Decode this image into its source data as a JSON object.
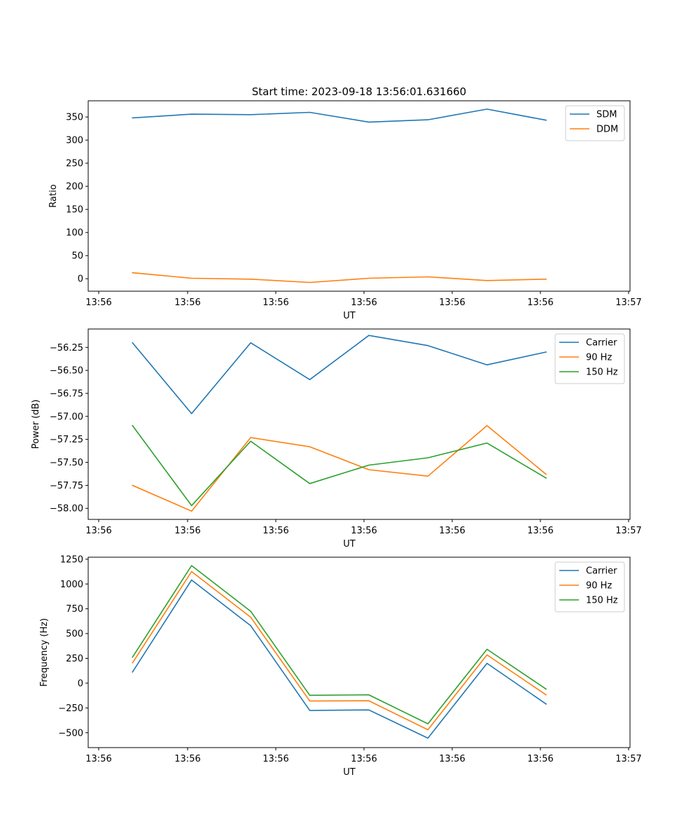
{
  "chart_data": [
    {
      "type": "line",
      "title": "Start time: 2023-09-18 13:56:01.631660",
      "xlabel": "UT",
      "ylabel": "Ratio",
      "x_tick_labels": [
        "13:56",
        "13:56",
        "13:56",
        "13:56",
        "13:56",
        "13:56",
        "13:57"
      ],
      "x": [
        1,
        2,
        3,
        4,
        5,
        6,
        7,
        8
      ],
      "xlim": [
        0.25,
        9.42
      ],
      "ylim": [
        -27,
        385
      ],
      "yticks": [
        0,
        50,
        100,
        150,
        200,
        250,
        300,
        350
      ],
      "ytick_labels": [
        "0",
        "50",
        "100",
        "150",
        "200",
        "250",
        "300",
        "350"
      ],
      "legend_position": "top-right",
      "series": [
        {
          "name": "SDM",
          "color": "#1f77b4",
          "values": [
            348,
            356,
            355,
            360,
            339,
            344,
            367,
            343
          ]
        },
        {
          "name": "DDM",
          "color": "#ff7f0e",
          "values": [
            13,
            1,
            -1,
            -8,
            1,
            4,
            -4,
            -1
          ]
        }
      ]
    },
    {
      "type": "line",
      "title": "",
      "xlabel": "UT",
      "ylabel": "Power (dB)",
      "x_tick_labels": [
        "13:56",
        "13:56",
        "13:56",
        "13:56",
        "13:56",
        "13:56",
        "13:57"
      ],
      "x": [
        1,
        2,
        3,
        4,
        5,
        6,
        7,
        8
      ],
      "xlim": [
        0.25,
        9.42
      ],
      "ylim": [
        -58.12,
        -56.05
      ],
      "yticks": [
        -58.0,
        -57.75,
        -57.5,
        -57.25,
        -57.0,
        -56.75,
        -56.5,
        -56.25
      ],
      "ytick_labels": [
        "−58.00",
        "−57.75",
        "−57.50",
        "−57.25",
        "−57.00",
        "−56.75",
        "−56.50",
        "−56.25"
      ],
      "legend_position": "top-right",
      "series": [
        {
          "name": "Carrier",
          "color": "#1f77b4",
          "values": [
            -56.2,
            -56.97,
            -56.2,
            -56.6,
            -56.12,
            -56.23,
            -56.44,
            -56.3
          ]
        },
        {
          "name": "90 Hz",
          "color": "#ff7f0e",
          "values": [
            -57.75,
            -58.03,
            -57.23,
            -57.33,
            -57.58,
            -57.65,
            -57.1,
            -57.63
          ]
        },
        {
          "name": "150 Hz",
          "color": "#2ca02c",
          "values": [
            -57.1,
            -57.97,
            -57.27,
            -57.73,
            -57.53,
            -57.45,
            -57.29,
            -57.67
          ]
        }
      ]
    },
    {
      "type": "line",
      "title": "",
      "xlabel": "UT",
      "ylabel": "Frequency (Hz)",
      "x_tick_labels": [
        "13:56",
        "13:56",
        "13:56",
        "13:56",
        "13:56",
        "13:56",
        "13:57"
      ],
      "x": [
        1,
        2,
        3,
        4,
        5,
        6,
        7,
        8
      ],
      "xlim": [
        0.25,
        9.42
      ],
      "ylim": [
        -650,
        1270
      ],
      "yticks": [
        -500,
        -250,
        0,
        250,
        500,
        750,
        1000,
        1250
      ],
      "ytick_labels": [
        "−500",
        "−250",
        "0",
        "250",
        "500",
        "750",
        "1000",
        "1250"
      ],
      "legend_position": "top-right",
      "series": [
        {
          "name": "Carrier",
          "color": "#1f77b4",
          "values": [
            112,
            1040,
            580,
            -275,
            -270,
            -555,
            200,
            -210
          ]
        },
        {
          "name": "90 Hz",
          "color": "#ff7f0e",
          "values": [
            205,
            1125,
            665,
            -180,
            -178,
            -470,
            285,
            -118
          ]
        },
        {
          "name": "150 Hz",
          "color": "#2ca02c",
          "values": [
            262,
            1185,
            725,
            -123,
            -118,
            -410,
            342,
            -60
          ]
        }
      ]
    }
  ]
}
